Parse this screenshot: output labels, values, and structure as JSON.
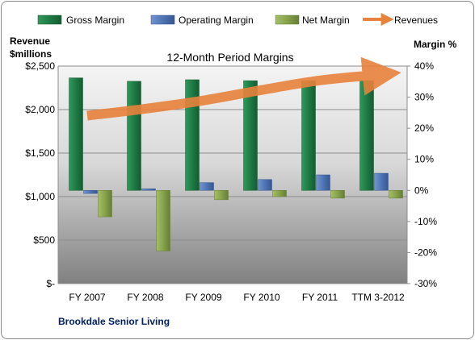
{
  "chart_data": {
    "type": "bar",
    "title": "12-Month Period Margins",
    "company": "Brookdale Senior Living",
    "left_axis": {
      "label_line1": "Revenue",
      "label_line2": "$millions",
      "ylim": [
        0,
        2500
      ],
      "ticks": [
        "$2,500",
        "$2,000",
        "$1,500",
        "$1,000",
        "$500",
        "$-"
      ]
    },
    "right_axis": {
      "label": "Margin %",
      "ylim": [
        -30,
        40
      ],
      "ticks": [
        "40%",
        "30%",
        "20%",
        "10%",
        "0%",
        "-10%",
        "-20%",
        "-30%"
      ]
    },
    "categories": [
      "FY 2007",
      "FY 2008",
      "FY 2009",
      "FY 2010",
      "FY 2011",
      "TTM 3-2012"
    ],
    "series": [
      {
        "name": "Gross Margin",
        "axis": "right",
        "values": [
          36.2,
          35.1,
          35.6,
          35.3,
          35.3,
          35.3
        ]
      },
      {
        "name": "Operating Margin",
        "axis": "right",
        "values": [
          -1.0,
          0.5,
          2.5,
          3.5,
          5.0,
          5.5
        ]
      },
      {
        "name": "Net Margin",
        "axis": "right",
        "values": [
          -8.5,
          -19.5,
          -3.0,
          -2.0,
          -2.5,
          -2.5
        ]
      },
      {
        "name": "Revenues",
        "type": "line",
        "axis": "left",
        "values": [
          1930,
          2010,
          2105,
          2225,
          2335,
          2400
        ]
      }
    ],
    "colors": {
      "gross": "#1f7a45",
      "operating": "#4f74b5",
      "net": "#86a24a",
      "revenues": "#e8823c"
    },
    "grid": true,
    "legend": "top"
  }
}
